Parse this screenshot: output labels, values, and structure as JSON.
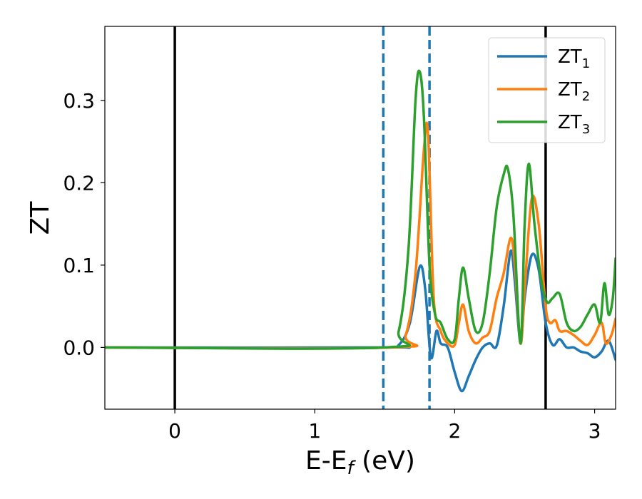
{
  "chart_data": {
    "type": "line",
    "title": "",
    "xlabel": "E-E",
    "xlabel_sub": "f",
    "xlabel_suffix": " (eV)",
    "ylabel": "ZT",
    "xlim": [
      -0.5,
      3.15
    ],
    "ylim": [
      -0.075,
      0.39
    ],
    "xticks": [
      0,
      1,
      2,
      3
    ],
    "xtick_labels": [
      "0",
      "1",
      "2",
      "3"
    ],
    "yticks": [
      0.0,
      0.1,
      0.2,
      0.3
    ],
    "ytick_labels": [
      "0.0",
      "0.1",
      "0.2",
      "0.3"
    ],
    "grid": false,
    "legend_position": "top-right",
    "vlines": [
      {
        "x": 0.0,
        "style": "solid",
        "color": "#000000"
      },
      {
        "x": 2.65,
        "style": "solid",
        "color": "#000000"
      },
      {
        "x": 1.49,
        "style": "dashed",
        "color": "#1f77b4"
      },
      {
        "x": 1.82,
        "style": "dashed",
        "color": "#1f77b4"
      }
    ],
    "series": [
      {
        "name": "ZT",
        "name_sub": "1",
        "color": "#1f77b4",
        "points": [
          [
            -0.5,
            0
          ],
          [
            1.5,
            0
          ],
          [
            1.6,
            0.003
          ],
          [
            1.68,
            0.03
          ],
          [
            1.75,
            0.098
          ],
          [
            1.79,
            0.07
          ],
          [
            1.83,
            -0.012
          ],
          [
            1.87,
            0.02
          ],
          [
            1.9,
            0.005
          ],
          [
            1.95,
            0.0
          ],
          [
            2.0,
            -0.03
          ],
          [
            2.05,
            -0.053
          ],
          [
            2.1,
            -0.035
          ],
          [
            2.15,
            -0.015
          ],
          [
            2.2,
            0.0
          ],
          [
            2.25,
            0.005
          ],
          [
            2.3,
            0.002
          ],
          [
            2.35,
            0.05
          ],
          [
            2.4,
            0.117
          ],
          [
            2.43,
            0.08
          ],
          [
            2.47,
            0.005
          ],
          [
            2.5,
            0.06
          ],
          [
            2.55,
            0.112
          ],
          [
            2.6,
            0.095
          ],
          [
            2.65,
            0.03
          ],
          [
            2.7,
            0.003
          ],
          [
            2.75,
            0.01
          ],
          [
            2.8,
            0.0
          ],
          [
            2.85,
            0.0
          ],
          [
            2.9,
            -0.005
          ],
          [
            2.95,
            -0.007
          ],
          [
            3.0,
            -0.012
          ],
          [
            3.05,
            -0.005
          ],
          [
            3.1,
            0.008
          ],
          [
            3.15,
            -0.015
          ]
        ]
      },
      {
        "name": "ZT",
        "name_sub": "2",
        "color": "#ff7f0e",
        "points": [
          [
            -0.5,
            0
          ],
          [
            1.55,
            0
          ],
          [
            1.65,
            0.015
          ],
          [
            1.72,
            0.09
          ],
          [
            1.78,
            0.24
          ],
          [
            1.81,
            0.258
          ],
          [
            1.85,
            0.06
          ],
          [
            1.9,
            0.02
          ],
          [
            1.95,
            0.005
          ],
          [
            2.0,
            0.003
          ],
          [
            2.03,
            0.03
          ],
          [
            2.06,
            0.052
          ],
          [
            2.1,
            0.02
          ],
          [
            2.15,
            0.005
          ],
          [
            2.2,
            0.012
          ],
          [
            2.25,
            0.02
          ],
          [
            2.3,
            0.06
          ],
          [
            2.35,
            0.09
          ],
          [
            2.4,
            0.133
          ],
          [
            2.43,
            0.1
          ],
          [
            2.47,
            0.005
          ],
          [
            2.5,
            0.07
          ],
          [
            2.55,
            0.18
          ],
          [
            2.6,
            0.15
          ],
          [
            2.65,
            0.05
          ],
          [
            2.68,
            0.03
          ],
          [
            2.72,
            0.033
          ],
          [
            2.75,
            0.02
          ],
          [
            2.8,
            0.02
          ],
          [
            2.85,
            0.015
          ],
          [
            2.9,
            0.008
          ],
          [
            2.95,
            0.003
          ],
          [
            3.0,
            0.015
          ],
          [
            3.05,
            0.03
          ],
          [
            3.08,
            0.005
          ],
          [
            3.12,
            0.015
          ],
          [
            3.15,
            0.035
          ]
        ]
      },
      {
        "name": "ZT",
        "name_sub": "3",
        "color": "#2ca02c",
        "points": [
          [
            -0.5,
            0
          ],
          [
            1.5,
            0
          ],
          [
            1.6,
            0.02
          ],
          [
            1.67,
            0.12
          ],
          [
            1.72,
            0.3
          ],
          [
            1.75,
            0.335
          ],
          [
            1.78,
            0.28
          ],
          [
            1.82,
            0.1
          ],
          [
            1.86,
            0.04
          ],
          [
            1.9,
            0.03
          ],
          [
            1.95,
            0.01
          ],
          [
            2.0,
            0.01
          ],
          [
            2.03,
            0.06
          ],
          [
            2.06,
            0.097
          ],
          [
            2.1,
            0.06
          ],
          [
            2.15,
            0.02
          ],
          [
            2.2,
            0.03
          ],
          [
            2.25,
            0.09
          ],
          [
            2.3,
            0.17
          ],
          [
            2.35,
            0.21
          ],
          [
            2.38,
            0.217
          ],
          [
            2.42,
            0.16
          ],
          [
            2.47,
            0.005
          ],
          [
            2.5,
            0.15
          ],
          [
            2.53,
            0.223
          ],
          [
            2.57,
            0.15
          ],
          [
            2.62,
            0.08
          ],
          [
            2.66,
            0.055
          ],
          [
            2.7,
            0.06
          ],
          [
            2.75,
            0.065
          ],
          [
            2.8,
            0.03
          ],
          [
            2.85,
            0.02
          ],
          [
            2.9,
            0.025
          ],
          [
            2.95,
            0.04
          ],
          [
            3.0,
            0.052
          ],
          [
            3.04,
            0.03
          ],
          [
            3.07,
            0.078
          ],
          [
            3.1,
            0.04
          ],
          [
            3.13,
            0.06
          ],
          [
            3.15,
            0.108
          ]
        ]
      }
    ]
  }
}
